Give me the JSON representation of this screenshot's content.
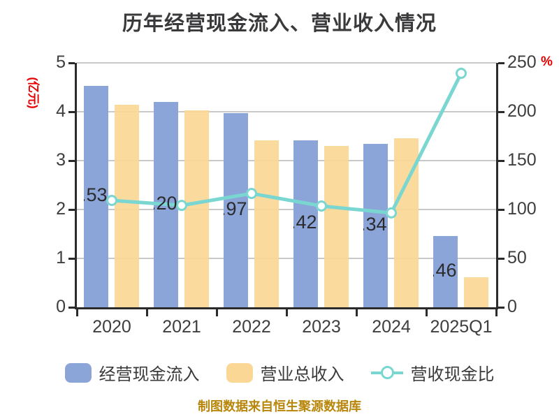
{
  "title": "历年经营现金流入、营业收入情况",
  "footer": "制图数据来自恒生聚源数据库",
  "axes": {
    "left_unit": "(亿元)",
    "right_unit": "%",
    "left_ticks": [
      "5",
      "4",
      "3",
      "2",
      "1",
      "0"
    ],
    "right_ticks": [
      "250",
      "200",
      "150",
      "100",
      "50",
      "0"
    ],
    "left_max": 5,
    "right_max": 250
  },
  "legend": [
    {
      "label": "经营现金流入",
      "type": "bar",
      "color": "#8ca5d8"
    },
    {
      "label": "营业总收入",
      "type": "bar",
      "color": "#fbd795"
    },
    {
      "label": "营收现金比",
      "type": "line",
      "color": "#79d6d0"
    }
  ],
  "colors": {
    "cash_bar": "#8ca5d8",
    "revenue_bar": "#fbd795",
    "ratio_line": "#79d6d0",
    "title_text": "#3a3a3c",
    "axis_text": "#3e3e40",
    "red_unit": "#e60000",
    "footer_gold": "#b8860b",
    "gridline": "#c9c9c9"
  },
  "chart_data": {
    "type": "bar+line",
    "title": "历年经营现金流入、营业收入情况",
    "categories": [
      "2020",
      "2021",
      "2022",
      "2023",
      "2024",
      "2025Q1"
    ],
    "series": [
      {
        "name": "经营现金流入",
        "type": "bar",
        "axis": "left",
        "color": "#8ca5d8",
        "values": [
          4.53,
          4.2,
          3.97,
          3.42,
          3.34,
          1.46
        ],
        "visible_labels": [
          ".53",
          ".20",
          ".97",
          ".42",
          ".34",
          ".46"
        ]
      },
      {
        "name": "营业总收入",
        "type": "bar",
        "axis": "left",
        "color": "#fbd795",
        "values": [
          4.15,
          4.03,
          3.41,
          3.3,
          3.46,
          0.61
        ]
      },
      {
        "name": "营收现金比",
        "type": "line",
        "axis": "right",
        "color": "#79d6d0",
        "values": [
          109.3,
          104.2,
          116.4,
          103.6,
          96.5,
          239.3
        ]
      }
    ],
    "ylabel_left": "(亿元)",
    "ylabel_right": "%",
    "ylim_left": [
      0,
      5
    ],
    "ylim_right": [
      0,
      250
    ],
    "grid": true,
    "legend_position": "bottom"
  }
}
